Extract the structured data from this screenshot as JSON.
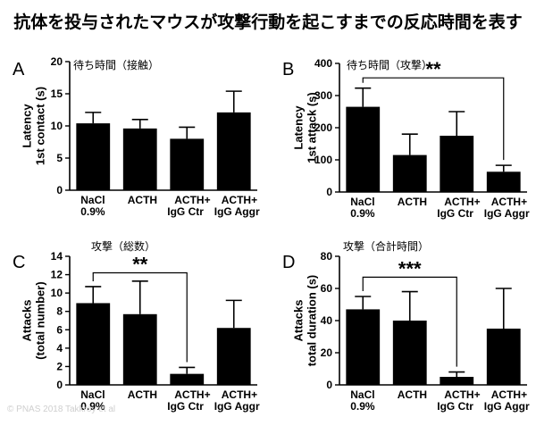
{
  "page_title": "抗体を投与されたマウスが攻撃行動を起こすまでの反応時間を表す",
  "copyright": "© PNAS 2018 Takkroy et al",
  "chart_data": [
    {
      "type": "bar",
      "letter": "A",
      "title": "待ち時間（接触）",
      "ylabel_lines": [
        "Latency",
        "1st contact (s)"
      ],
      "ylim": [
        0,
        20
      ],
      "yticks": [
        0,
        5,
        10,
        15,
        20
      ],
      "categories": [
        [
          "NaCl",
          "0.9%"
        ],
        [
          "ACTH"
        ],
        [
          "ACTH+",
          "IgG Ctr"
        ],
        [
          "ACTH+",
          "IgG Aggr"
        ]
      ],
      "values": [
        10.4,
        9.6,
        8.0,
        12.1
      ],
      "errors": [
        1.7,
        1.4,
        1.8,
        3.3
      ],
      "significance": null
    },
    {
      "type": "bar",
      "letter": "B",
      "title": "待ち時間（攻撃）",
      "ylabel_lines": [
        "Latency",
        "1st attack (s)"
      ],
      "ylim": [
        0,
        400
      ],
      "yticks": [
        0,
        100,
        200,
        300,
        400
      ],
      "categories": [
        [
          "NaCl",
          "0.9%"
        ],
        [
          "ACTH"
        ],
        [
          "ACTH+",
          "IgG Ctr"
        ],
        [
          "ACTH+",
          "IgG Aggr"
        ]
      ],
      "values": [
        265,
        115,
        175,
        63
      ],
      "errors": [
        58,
        65,
        75,
        20
      ],
      "significance": {
        "label": "**",
        "from": 0,
        "to": 3,
        "y": 355
      }
    },
    {
      "type": "bar",
      "letter": "C",
      "title": "攻撃（総数）",
      "ylabel_lines": [
        "Attacks",
        "(total number)"
      ],
      "ylim": [
        0,
        14
      ],
      "yticks": [
        0,
        2,
        4,
        6,
        8,
        10,
        12,
        14
      ],
      "categories": [
        [
          "NaCl",
          "0.9%"
        ],
        [
          "ACTH"
        ],
        [
          "ACTH+",
          "IgG Ctr"
        ],
        [
          "ACTH+",
          "IgG Aggr"
        ]
      ],
      "values": [
        8.9,
        7.7,
        1.2,
        6.2
      ],
      "errors": [
        1.8,
        3.6,
        0.7,
        3.0
      ],
      "significance": {
        "label": "**",
        "from": 0,
        "to": 2,
        "y": 12.2
      }
    },
    {
      "type": "bar",
      "letter": "D",
      "title": "攻撃（合計時間）",
      "ylabel_lines": [
        "Attacks",
        "total duration (s)"
      ],
      "ylim": [
        0,
        80
      ],
      "yticks": [
        0,
        20,
        40,
        60,
        80
      ],
      "categories": [
        [
          "NaCl",
          "0.9%"
        ],
        [
          "ACTH"
        ],
        [
          "ACTH+",
          "IgG Ctr"
        ],
        [
          "ACTH+",
          "IgG Aggr"
        ]
      ],
      "values": [
        47,
        40,
        5,
        35
      ],
      "errors": [
        8,
        18,
        3,
        25
      ],
      "significance": {
        "label": "***",
        "from": 0,
        "to": 2,
        "y": 67
      }
    }
  ]
}
